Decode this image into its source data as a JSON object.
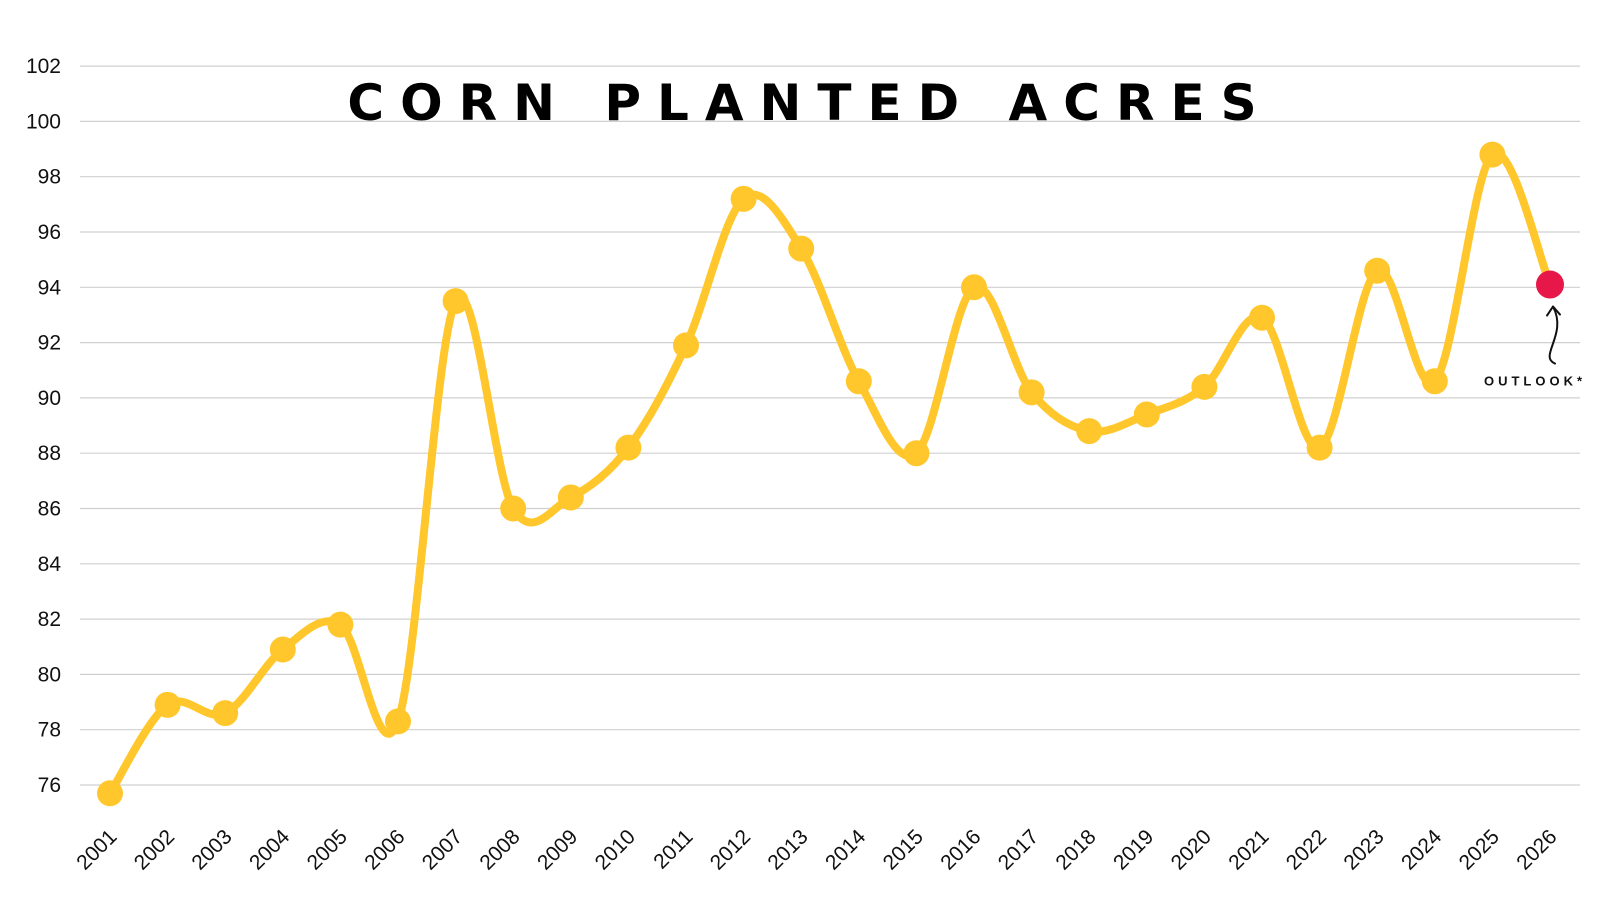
{
  "chart_data": {
    "type": "line",
    "title": "CORN PLANTED ACRES",
    "xlabel": "",
    "ylabel": "",
    "ylim": [
      75,
      102
    ],
    "yticks": [
      76,
      78,
      80,
      82,
      84,
      86,
      88,
      90,
      92,
      94,
      96,
      98,
      100,
      102
    ],
    "grid": true,
    "categories": [
      "2001",
      "2002",
      "2003",
      "2004",
      "2005",
      "2006",
      "2007",
      "2008",
      "2009",
      "2010",
      "2011",
      "2012",
      "2013",
      "2014",
      "2015",
      "2016",
      "2017",
      "2018",
      "2019",
      "2020",
      "2021",
      "2022",
      "2023",
      "2024",
      "2025",
      "2026"
    ],
    "series": [
      {
        "values": [
          75.7,
          78.9,
          78.6,
          80.9,
          81.8,
          78.3,
          93.5,
          86.0,
          86.4,
          88.2,
          91.9,
          97.2,
          95.4,
          90.6,
          88.0,
          94.0,
          90.2,
          88.8,
          89.4,
          90.4,
          92.9,
          88.2,
          94.6,
          90.6,
          98.8,
          94.1
        ],
        "color": "#FFC72C"
      }
    ],
    "highlight": {
      "category": "2026",
      "value": 94.1,
      "color": "#E8174A"
    },
    "annotation": {
      "text": "OUTLOOK*",
      "target": "2026"
    }
  }
}
